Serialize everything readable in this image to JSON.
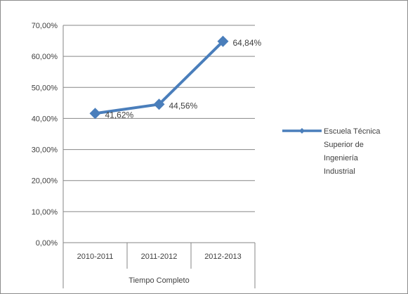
{
  "chart_data": {
    "type": "line",
    "categories": [
      "2010-2011",
      "2011-2012",
      "2012-2013"
    ],
    "group_label": "Tiempo Completo",
    "series": [
      {
        "name": "Escuela Técnica Superior de Ingeniería Industrial",
        "legend_lines": [
          "Escuela Técnica",
          "Superior de",
          "Ingeniería",
          "Industrial"
        ],
        "values": [
          41.62,
          44.56,
          64.84
        ],
        "data_labels": [
          "41,62%",
          "44,56%",
          "64,84%"
        ],
        "color": "#4a7ebb"
      }
    ],
    "y_ticks": [
      {
        "value": 0,
        "label": "0,00%"
      },
      {
        "value": 10,
        "label": "10,00%"
      },
      {
        "value": 20,
        "label": "20,00%"
      },
      {
        "value": 30,
        "label": "30,00%"
      },
      {
        "value": 40,
        "label": "40,00%"
      },
      {
        "value": 50,
        "label": "50,00%"
      },
      {
        "value": 60,
        "label": "60,00%"
      },
      {
        "value": 70,
        "label": "70,00%"
      }
    ],
    "ylim": [
      0,
      70
    ],
    "grid": true,
    "legend_position": "right",
    "title": "",
    "xlabel": "",
    "ylabel": ""
  }
}
